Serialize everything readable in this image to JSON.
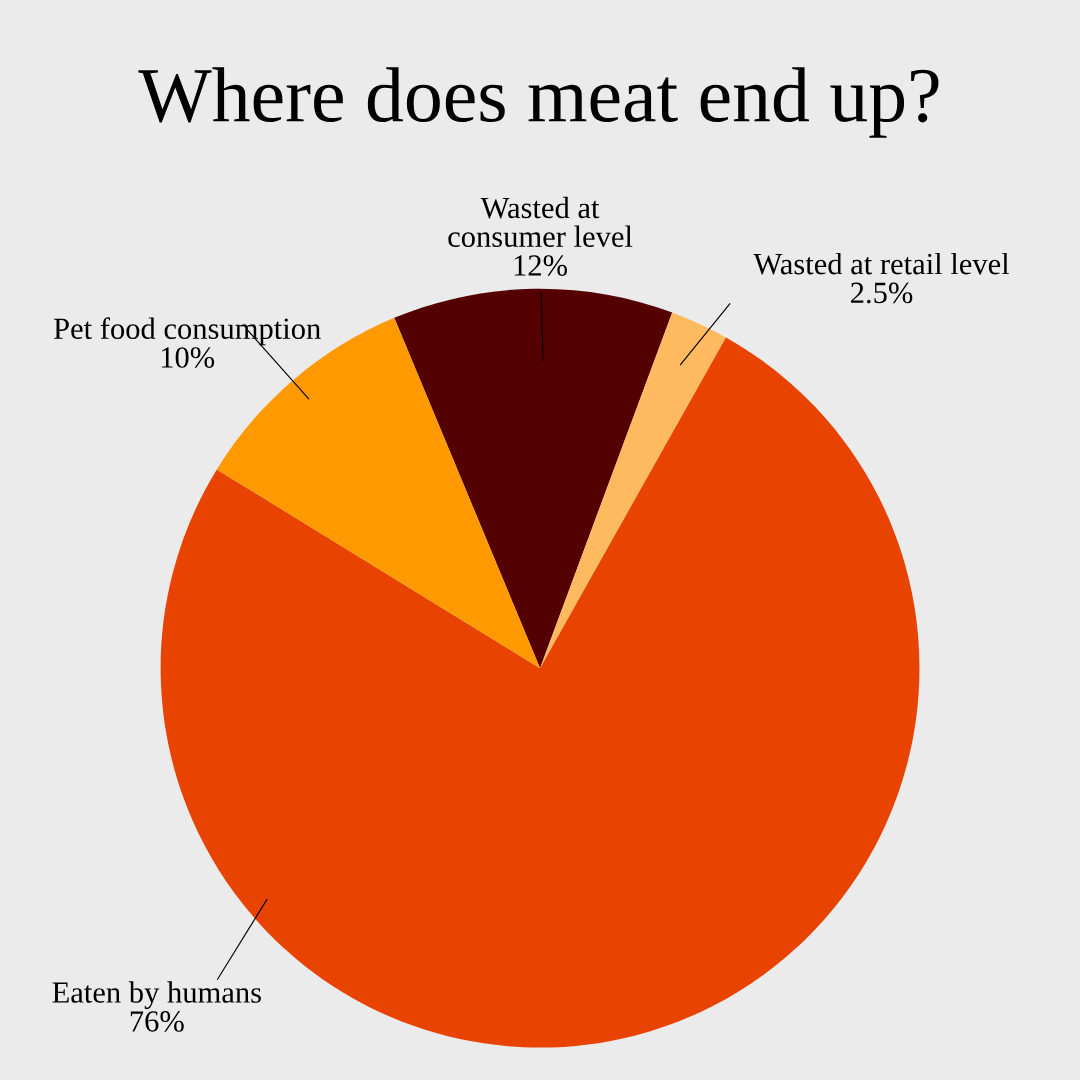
{
  "chart_data": {
    "type": "pie",
    "title": "Where does meat end up?",
    "categories": [
      "Wasted at\nconsumer level",
      "Wasted at retail level",
      "Eaten by humans",
      "Pet food consumption"
    ],
    "values": [
      12,
      2.5,
      76,
      10
    ],
    "value_labels": [
      "12%",
      "2.5%",
      "76%",
      "10%"
    ],
    "colors": [
      "#550000",
      "#ffb95e",
      "#e84300",
      "#ff9900"
    ]
  }
}
